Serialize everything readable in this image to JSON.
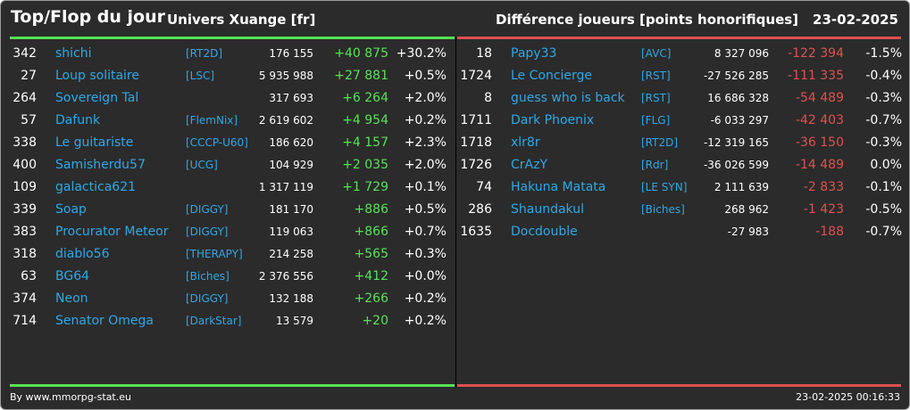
{
  "header": {
    "title": "Top/Flop du jour",
    "universe": "Univers Xuange [fr]",
    "metric": "Différence joueurs [points honorifiques]",
    "date": "23-02-2025"
  },
  "colors": {
    "background": "#2b2b2b",
    "top_accent": "#56e356",
    "flop_accent": "#e05050",
    "link": "#2fa8e6"
  },
  "top": [
    {
      "rank": "342",
      "name": "shichi",
      "alliance": "[RT2D]",
      "points": "176 155",
      "diff": "+40 875",
      "pct": "+30.2%"
    },
    {
      "rank": "27",
      "name": "Loup solitaire",
      "alliance": "[LSC]",
      "points": "5 935 988",
      "diff": "+27 881",
      "pct": "+0.5%"
    },
    {
      "rank": "264",
      "name": "Sovereign Tal",
      "alliance": "",
      "points": "317 693",
      "diff": "+6 264",
      "pct": "+2.0%"
    },
    {
      "rank": "57",
      "name": "Dafunk",
      "alliance": "[FlemNix]",
      "points": "2 619 602",
      "diff": "+4 954",
      "pct": "+0.2%"
    },
    {
      "rank": "338",
      "name": "Le guitariste",
      "alliance": "[CCCP-U60]",
      "points": "186 620",
      "diff": "+4 157",
      "pct": "+2.3%"
    },
    {
      "rank": "400",
      "name": "Samisherdu57",
      "alliance": "[UCG]",
      "points": "104 929",
      "diff": "+2 035",
      "pct": "+2.0%"
    },
    {
      "rank": "109",
      "name": "galactica621",
      "alliance": "",
      "points": "1 317 119",
      "diff": "+1 729",
      "pct": "+0.1%"
    },
    {
      "rank": "339",
      "name": "Soap",
      "alliance": "[DIGGY]",
      "points": "181 170",
      "diff": "+886",
      "pct": "+0.5%"
    },
    {
      "rank": "383",
      "name": "Procurator Meteor",
      "alliance": "[DIGGY]",
      "points": "119 063",
      "diff": "+866",
      "pct": "+0.7%"
    },
    {
      "rank": "318",
      "name": "diablo56",
      "alliance": "[THERAPY]",
      "points": "214 258",
      "diff": "+565",
      "pct": "+0.3%"
    },
    {
      "rank": "63",
      "name": "BG64",
      "alliance": "[Biches]",
      "points": "2 376 556",
      "diff": "+412",
      "pct": "+0.0%"
    },
    {
      "rank": "374",
      "name": "Neon",
      "alliance": "[DIGGY]",
      "points": "132 188",
      "diff": "+266",
      "pct": "+0.2%"
    },
    {
      "rank": "714",
      "name": "Senator Omega",
      "alliance": "[DarkStar]",
      "points": "13 579",
      "diff": "+20",
      "pct": "+0.2%"
    }
  ],
  "flop": [
    {
      "rank": "18",
      "name": "Papy33",
      "alliance": "[AVC]",
      "points": "8 327 096",
      "diff": "-122 394",
      "pct": "-1.5%"
    },
    {
      "rank": "1724",
      "name": "Le Concierge",
      "alliance": "[RST]",
      "points": "-27 526 285",
      "diff": "-111 335",
      "pct": "-0.4%"
    },
    {
      "rank": "8",
      "name": "guess who is back",
      "alliance": "[RST]",
      "points": "16 686 328",
      "diff": "-54 489",
      "pct": "-0.3%"
    },
    {
      "rank": "1711",
      "name": "Dark Phoenix",
      "alliance": "[FLG]",
      "points": "-6 033 297",
      "diff": "-42 403",
      "pct": "-0.7%"
    },
    {
      "rank": "1718",
      "name": "xlr8r",
      "alliance": "[RT2D]",
      "points": "-12 319 165",
      "diff": "-36 150",
      "pct": "-0.3%"
    },
    {
      "rank": "1726",
      "name": "CrAzY",
      "alliance": "[Rdr]",
      "points": "-36 026 599",
      "diff": "-14 489",
      "pct": "0.0%"
    },
    {
      "rank": "74",
      "name": "Hakuna Matata",
      "alliance": "[LE SYN]",
      "points": "2 111 639",
      "diff": "-2 833",
      "pct": "-0.1%"
    },
    {
      "rank": "286",
      "name": "Shaundakul",
      "alliance": "[Biches]",
      "points": "268 962",
      "diff": "-1 423",
      "pct": "-0.5%"
    },
    {
      "rank": "1635",
      "name": "Docdouble",
      "alliance": "",
      "points": "-27 983",
      "diff": "-188",
      "pct": "-0.7%"
    }
  ],
  "footer": {
    "source": "By www.mmorpg-stat.eu",
    "timestamp": "23-02-2025 00:16:33"
  }
}
